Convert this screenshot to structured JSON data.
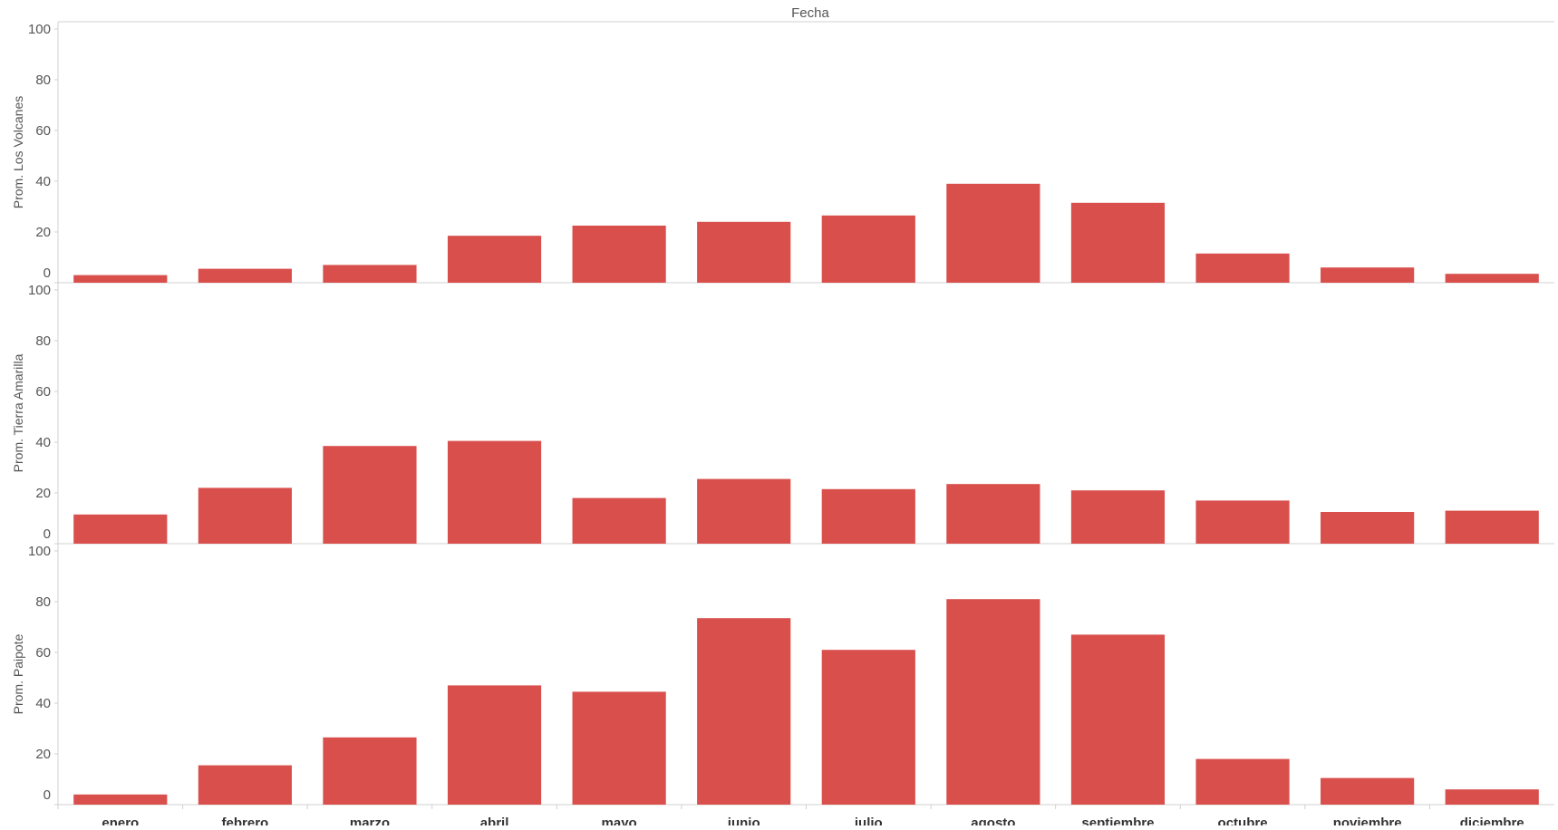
{
  "header": {
    "title": "Fecha"
  },
  "colors": {
    "bar": "#d94f4c",
    "axis": "#d0d0d0",
    "text": "#555555",
    "category_text": "#333333"
  },
  "chart_data": {
    "type": "bar",
    "title": "Fecha",
    "categories": [
      "enero",
      "febrero",
      "marzo",
      "abril",
      "mayo",
      "junio",
      "julio",
      "agosto",
      "septiembre",
      "octubre",
      "noviembre",
      "diciembre"
    ],
    "ylim": [
      0,
      100
    ],
    "yticks": [
      0,
      20,
      40,
      60,
      80,
      100
    ],
    "grid": false,
    "series": [
      {
        "name": "Prom. Los Volcanes",
        "values": [
          3,
          5.5,
          7,
          18.5,
          22.5,
          24,
          26.5,
          39,
          31.5,
          11.5,
          6,
          3.5
        ]
      },
      {
        "name": "Prom. Tierra Amarilla",
        "values": [
          11.5,
          22,
          38.5,
          40.5,
          18,
          25.5,
          21.5,
          23.5,
          21,
          17,
          12.5,
          13
        ]
      },
      {
        "name": "Prom. Paipote",
        "values": [
          4,
          15.5,
          26.5,
          47,
          44.5,
          73.5,
          61,
          81,
          67,
          18,
          10.5,
          6
        ]
      }
    ]
  }
}
